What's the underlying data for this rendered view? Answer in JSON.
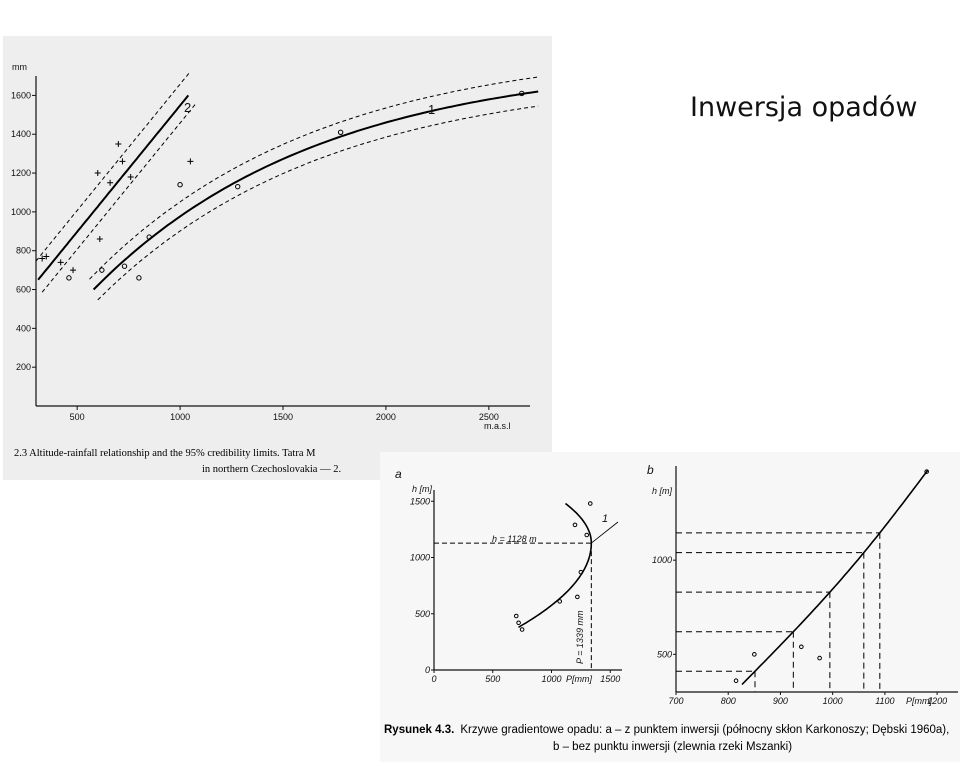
{
  "slide": {
    "title": "Inwersja opadów"
  },
  "chart_data": [
    {
      "type": "scatter",
      "panel": "top",
      "title": "",
      "ylabel": "mm",
      "xlabel": "m.a.s.l",
      "xlim": [
        300,
        2700
      ],
      "ylim": [
        0,
        1700
      ],
      "x_ticks": [
        "500",
        "1000",
        "1500",
        "2000",
        "2500"
      ],
      "y_ticks": [
        "200",
        "400",
        "600",
        "800",
        "1000",
        "1200",
        "1400",
        "1600"
      ],
      "caption_line1": "2.3 Altitude-rainfall relationship and the 95% credibility limits. Tatra M",
      "caption_line2": "in northern Czechoslovakia — 2.",
      "series": [
        {
          "name": "1",
          "marker": "circle",
          "x": [
            460,
            620,
            730,
            800,
            850,
            1000,
            1280,
            1780,
            2660
          ],
          "y": [
            660,
            700,
            720,
            660,
            870,
            1140,
            1130,
            1410,
            1610
          ]
        },
        {
          "name": "2",
          "marker": "plus",
          "x": [
            330,
            350,
            420,
            480,
            600,
            610,
            660,
            700,
            720,
            760,
            1050
          ],
          "y": [
            760,
            770,
            740,
            700,
            1200,
            860,
            1150,
            1350,
            1260,
            1180,
            1260
          ]
        }
      ],
      "fits": [
        {
          "label": "1",
          "x_range": [
            580,
            2740
          ],
          "y_at": [
            580,
            2740
          ],
          "y_vals": [
            600,
            1620
          ]
        },
        {
          "label": "2",
          "x_range": [
            310,
            1040
          ],
          "y_vals": [
            650,
            1600
          ]
        }
      ]
    },
    {
      "type": "scatter",
      "panel": "a",
      "label": "a",
      "ylabel": "h [m]",
      "xlabel": "P[mm]",
      "xlim": [
        0,
        1600
      ],
      "ylim": [
        0,
        1600
      ],
      "x_ticks": [
        "0",
        "500",
        "1000",
        "1500"
      ],
      "y_ticks": [
        "0",
        "500",
        "1000",
        "1500"
      ],
      "annotation_h": "h = 1128 m",
      "annotation_p": "P = 1339 mm",
      "curve_label": "1",
      "x": [
        700,
        720,
        750,
        1070,
        1220,
        1250,
        1300,
        1200,
        1330
      ],
      "y": [
        480,
        420,
        360,
        610,
        650,
        870,
        1200,
        1290,
        1480
      ]
    },
    {
      "type": "line",
      "panel": "b",
      "label": "b",
      "ylabel": "h [m]",
      "xlabel": "P[mm]",
      "xlim": [
        700,
        1240
      ],
      "ylim": [
        300,
        1500
      ],
      "x_ticks": [
        "700",
        "800",
        "900",
        "1000",
        "1100",
        "1200"
      ],
      "y_ticks": [
        "500",
        "1000"
      ],
      "x": [
        815,
        850,
        940,
        975,
        1180
      ],
      "y": [
        360,
        500,
        540,
        480,
        1470
      ]
    }
  ],
  "figure_caption": {
    "bold": "Rysunek 4.3.",
    "line1": "Krzywe gradientowe opadu:  a – z punktem inwersji  (północny skłon Karkonoszy; Dębski 1960a),",
    "line2": "b – bez punktu inwersji  (zlewnia rzeki Mszanki)"
  }
}
